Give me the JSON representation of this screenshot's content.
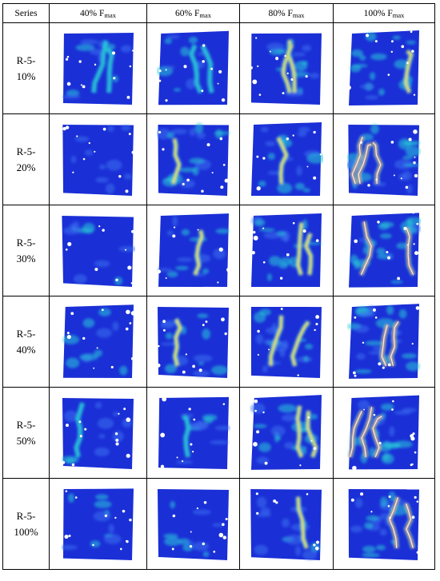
{
  "header": {
    "series": "Series",
    "prefix": [
      "40% F",
      "60% F",
      "80% F",
      "100% F"
    ],
    "sub": "max"
  },
  "rows": [
    {
      "line1": "R-5-",
      "line2": "10%"
    },
    {
      "line1": "R-5-",
      "line2": "20%"
    },
    {
      "line1": "R-5-",
      "line2": "30%"
    },
    {
      "line1": "R-5-",
      "line2": "40%"
    },
    {
      "line1": "R-5-",
      "line2": "50%"
    },
    {
      "line1": "R-5-",
      "line2": "100%"
    }
  ],
  "colors": {
    "background": "#1a2fd6",
    "low": "#3a6ff0",
    "mid": "#27c8d8",
    "high": "#f2e23a",
    "peak": "#e02a1a",
    "hole": "#ffffff"
  },
  "maps": [
    [
      {
        "level": 1,
        "cracks": 2
      },
      {
        "level": 1,
        "cracks": 2
      },
      {
        "level": 2,
        "cracks": 2
      },
      {
        "level": 3,
        "cracks": 1
      }
    ],
    [
      {
        "level": 1,
        "cracks": 0
      },
      {
        "level": 3,
        "cracks": 1
      },
      {
        "level": 3,
        "cracks": 1
      },
      {
        "level": 4,
        "cracks": 3
      }
    ],
    [
      {
        "level": 1,
        "cracks": 0
      },
      {
        "level": 2,
        "cracks": 1
      },
      {
        "level": 3,
        "cracks": 2
      },
      {
        "level": 4,
        "cracks": 2
      }
    ],
    [
      {
        "level": 1,
        "cracks": 0
      },
      {
        "level": 2,
        "cracks": 1
      },
      {
        "level": 3,
        "cracks": 2
      },
      {
        "level": 4,
        "cracks": 2
      }
    ],
    [
      {
        "level": 1,
        "cracks": 1
      },
      {
        "level": 1,
        "cracks": 1
      },
      {
        "level": 3,
        "cracks": 2
      },
      {
        "level": 4,
        "cracks": 3
      }
    ],
    [
      {
        "level": 1,
        "cracks": 0
      },
      {
        "level": 1,
        "cracks": 0
      },
      {
        "level": 2,
        "cracks": 1
      },
      {
        "level": 4,
        "cracks": 2
      }
    ]
  ]
}
